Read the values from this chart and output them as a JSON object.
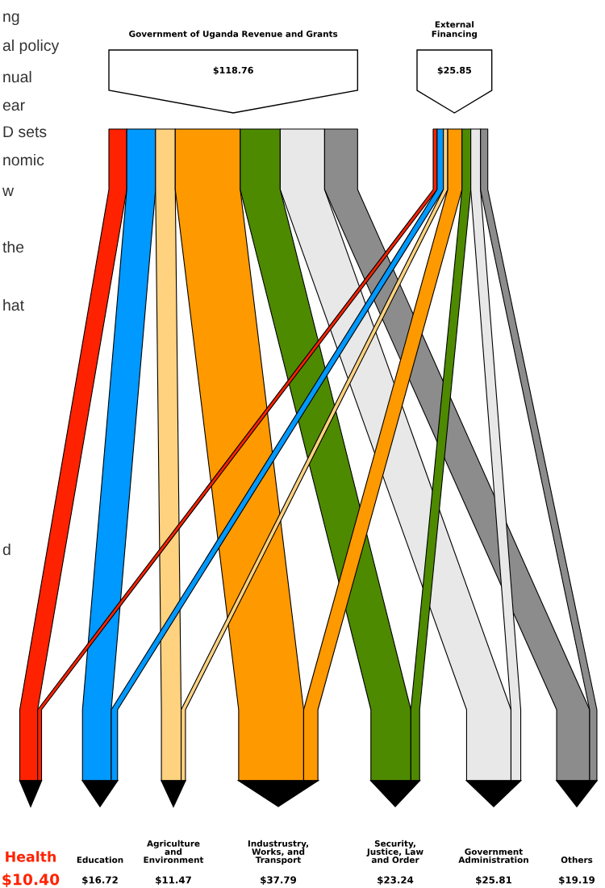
{
  "chart_data": {
    "type": "other",
    "categories": [
      "Health",
      "Education",
      "Agriculture\nand\nEnvironment",
      "Industrustry,\nWorks, and\nTransport",
      "Security,\nJustice, Law\nand Order",
      "Government\nAdministration",
      "Others"
    ],
    "colors": [
      "#ff2200",
      "#0099ff",
      "#ffd27f",
      "#ff9900",
      "#4e8a00",
      "#e8e8e8",
      "#8c8c8c"
    ],
    "values": [
      10.4,
      16.72,
      11.47,
      37.79,
      23.24,
      25.81,
      19.19
    ],
    "value_labels": [
      "$10.40",
      "$16.72",
      "$11.47",
      "$37.79",
      "$23.24",
      "$25.81",
      "$19.19"
    ],
    "annotations": [
      "Government of Uganda Revenue and Grants",
      "$118.76",
      "External\nFinancing",
      "$25.85",
      "ng",
      "al policy",
      "nual",
      "ear",
      "D sets",
      "nomic",
      "w",
      "the",
      "hat",
      "d"
    ]
  }
}
